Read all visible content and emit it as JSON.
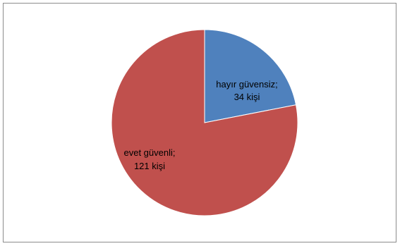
{
  "chart_data": {
    "type": "pie",
    "slices": [
      {
        "name": "hayır güvensiz",
        "value": 34,
        "label_line1": "hayır güvensiz;",
        "label_line2": "34 kişi",
        "color": "#4f81bd"
      },
      {
        "name": "evet güvenli",
        "value": 121,
        "label_line1": "evet güvenli;",
        "label_line2": "121 kişi",
        "color": "#c0504d"
      }
    ],
    "start_angle": "12 o'clock, clockwise",
    "legend": "none"
  }
}
